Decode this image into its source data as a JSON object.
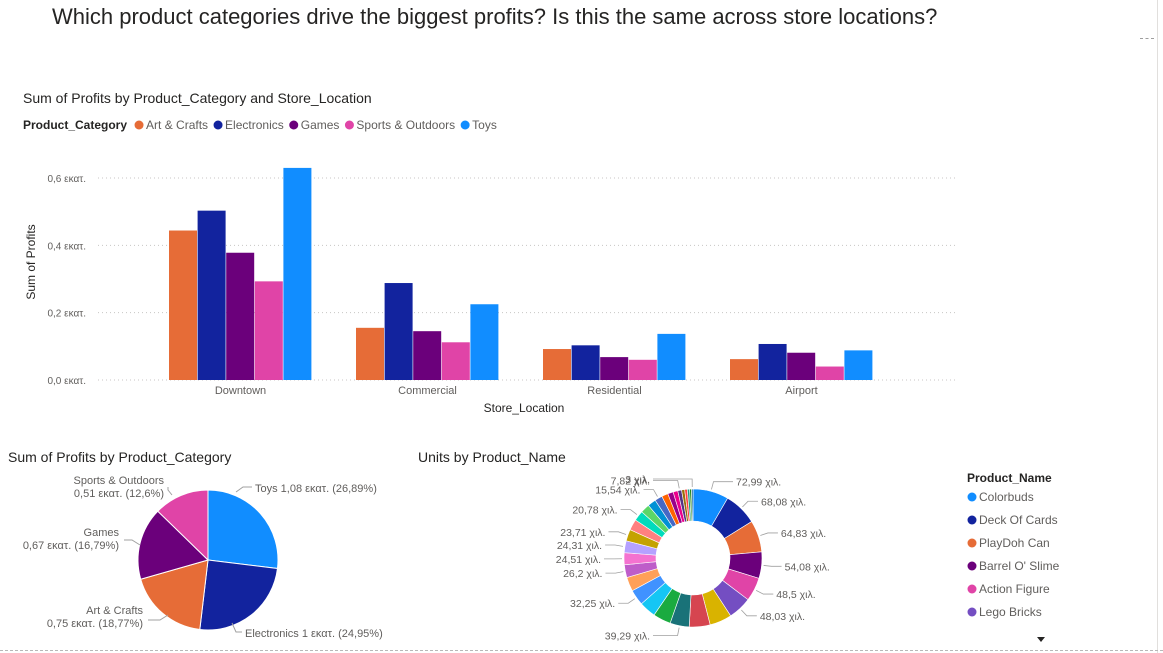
{
  "page_title": "Which product categories drive the biggest profits? Is this the same across store locations?",
  "colors": {
    "Art & Crafts": "#e66c37",
    "Electronics": "#12239e",
    "Games": "#6b007b",
    "Sports & Outdoors": "#e044a7",
    "Toys": "#118dff"
  },
  "chart_data": [
    {
      "type": "bar",
      "title": "Sum of Profits by Product_Category and Store_Location",
      "xlabel": "Store_Location",
      "ylabel": "Sum of Profits",
      "legend_title": "Product_Category",
      "legend_position": "top-left",
      "categories": [
        "Downtown",
        "Commercial",
        "Residential",
        "Airport"
      ],
      "series": [
        {
          "name": "Art & Crafts",
          "values": [
            0.444,
            0.155,
            0.092,
            0.062
          ]
        },
        {
          "name": "Electronics",
          "values": [
            0.503,
            0.288,
            0.103,
            0.107
          ]
        },
        {
          "name": "Games",
          "values": [
            0.378,
            0.145,
            0.068,
            0.081
          ]
        },
        {
          "name": "Sports & Outdoors",
          "values": [
            0.293,
            0.112,
            0.06,
            0.04
          ]
        },
        {
          "name": "Toys",
          "values": [
            0.63,
            0.225,
            0.137,
            0.088
          ]
        }
      ],
      "y_ticks": [
        0,
        0.2,
        0.4,
        0.6
      ],
      "y_tick_labels": [
        "0,0 εκατ.",
        "0,2 εκατ.",
        "0,4 εκατ.",
        "0,6 εκατ."
      ],
      "ylim": [
        0,
        0.6
      ],
      "grid": true
    },
    {
      "type": "pie",
      "title": "Sum of Profits by Product_Category",
      "slices": [
        {
          "name": "Toys",
          "value": 1.08,
          "label_value": "1,08 εκατ.",
          "percent": "(26,89%)"
        },
        {
          "name": "Electronics",
          "value": 1.0,
          "label_value": "1 εκατ.",
          "percent": "(24,95%)"
        },
        {
          "name": "Art & Crafts",
          "value": 0.75,
          "label_value": "0,75 εκατ.",
          "percent": "(18,77%)"
        },
        {
          "name": "Games",
          "value": 0.67,
          "label_value": "0,67 εκατ.",
          "percent": "(16,79%)"
        },
        {
          "name": "Sports & Outdoors",
          "value": 0.51,
          "label_value": "0,51 εκατ.",
          "percent": "(12,6%)"
        }
      ]
    },
    {
      "type": "pie",
      "title": "Units by Product_Name",
      "legend_title": "Product_Name",
      "legend_position": "right",
      "legend": [
        {
          "name": "Colorbuds",
          "color": "#118dff"
        },
        {
          "name": "Deck Of Cards",
          "color": "#12239e"
        },
        {
          "name": "PlayDoh Can",
          "color": "#e66c37"
        },
        {
          "name": "Barrel O' Slime",
          "color": "#6b007b"
        },
        {
          "name": "Action Figure",
          "color": "#e044a7"
        },
        {
          "name": "Lego Bricks",
          "color": "#744ec2"
        }
      ],
      "slices": [
        {
          "value": 72.99,
          "label": "72,99 χιλ.",
          "color": "#118dff"
        },
        {
          "value": 68.08,
          "label": "68,08 χιλ.",
          "color": "#12239e"
        },
        {
          "value": 64.83,
          "label": "64,83 χιλ.",
          "color": "#e66c37"
        },
        {
          "value": 54.08,
          "label": "54,08 χιλ.",
          "color": "#6b007b"
        },
        {
          "value": 48.5,
          "label": "48,5 χιλ.",
          "color": "#e044a7"
        },
        {
          "value": 48.03,
          "label": "48,03 χιλ.",
          "color": "#744ec2"
        },
        {
          "value": 45.2,
          "label": "",
          "color": "#d9b300"
        },
        {
          "value": 42.6,
          "label": "",
          "color": "#d64550"
        },
        {
          "value": 39.29,
          "label": "39,29 χιλ.",
          "color": "#197278"
        },
        {
          "value": 36.4,
          "label": "",
          "color": "#1aab40"
        },
        {
          "value": 34.1,
          "label": "",
          "color": "#15c6f4"
        },
        {
          "value": 32.25,
          "label": "32,25 χιλ.",
          "color": "#4092ff"
        },
        {
          "value": 28.7,
          "label": "",
          "color": "#ffa058"
        },
        {
          "value": 26.2,
          "label": "26,2 χιλ.",
          "color": "#be5dc9"
        },
        {
          "value": 24.51,
          "label": "24,51 χιλ.",
          "color": "#f472d0"
        },
        {
          "value": 24.31,
          "label": "24,31 χιλ.",
          "color": "#b5a1ff"
        },
        {
          "value": 23.71,
          "label": "23,71 χιλ.",
          "color": "#c4a200"
        },
        {
          "value": 22.4,
          "label": "",
          "color": "#ff8080"
        },
        {
          "value": 20.78,
          "label": "20,78 χιλ.",
          "color": "#00dbbc"
        },
        {
          "value": 18.6,
          "label": "",
          "color": "#5bd667"
        },
        {
          "value": 17.2,
          "label": "",
          "color": "#0091d5"
        },
        {
          "value": 15.54,
          "label": "15,54 χιλ.",
          "color": "#4668c5"
        },
        {
          "value": 13.1,
          "label": "",
          "color": "#ff6300"
        },
        {
          "value": 11.3,
          "label": "",
          "color": "#99008a"
        },
        {
          "value": 9.6,
          "label": "",
          "color": "#ec008c"
        },
        {
          "value": 7.82,
          "label": "7,82 χιλ.",
          "color": "#533285"
        },
        {
          "value": 6.3,
          "label": "",
          "color": "#99700a"
        },
        {
          "value": 5.4,
          "label": "",
          "color": "#ff4141"
        },
        {
          "value": 4.6,
          "label": "",
          "color": "#1f9a85"
        },
        {
          "value": 3.9,
          "label": "",
          "color": "#25891c"
        },
        {
          "value": 3.0,
          "label": "3 χιλ.",
          "color": "#0057a2"
        }
      ]
    }
  ]
}
